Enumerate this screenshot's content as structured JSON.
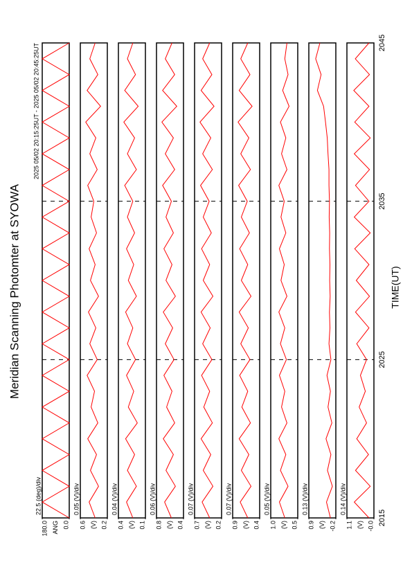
{
  "chart_data": {
    "type": "line",
    "title": "Meridian Scanning Photomter at SYOWA",
    "subtitle": "2025 05/02 20:15:25UT - 2025 05/02 20:45:25UT",
    "x_label": "TIME(UT)",
    "xlim": [
      2015,
      2045
    ],
    "xticks": [
      2015,
      2025,
      2035,
      2045
    ],
    "grid": true,
    "x": [
      2015,
      2016,
      2017,
      2018,
      2019,
      2020,
      2021,
      2022,
      2023,
      2024,
      2025,
      2026,
      2027,
      2028,
      2029,
      2030,
      2031,
      2032,
      2033,
      2034,
      2035,
      2036,
      2037,
      2038,
      2039,
      2040,
      2041,
      2042,
      2043,
      2044,
      2045
    ],
    "panels": [
      {
        "scale_label": "22.5 (deg)/div",
        "ylabel": "ANG",
        "ylim": [
          0,
          180
        ],
        "yticks": [
          {
            "value": 0,
            "label": "0.0"
          },
          {
            "value": 180,
            "label": "180.0"
          }
        ],
        "color": "#ff0000",
        "values": [
          0,
          180,
          0,
          180,
          0,
          180,
          0,
          180,
          0,
          180,
          0,
          180,
          0,
          180,
          0,
          180,
          0,
          180,
          0,
          180,
          0,
          180,
          0,
          180,
          0,
          180,
          0,
          180,
          0,
          180,
          0
        ]
      },
      {
        "scale_label": "0.05 (V)/div",
        "ylabel": "(V)",
        "ylim": [
          0.2,
          0.6
        ],
        "yticks": [
          0.2,
          0.6
        ],
        "color": "#ff0000",
        "values": [
          0.38,
          0.47,
          0.33,
          0.45,
          0.36,
          0.49,
          0.34,
          0.44,
          0.39,
          0.5,
          0.35,
          0.46,
          0.37,
          0.48,
          0.33,
          0.45,
          0.38,
          0.47,
          0.36,
          0.44,
          0.4,
          0.49,
          0.35,
          0.46,
          0.37,
          0.52,
          0.3,
          0.5,
          0.34,
          0.46,
          0.38
        ]
      },
      {
        "scale_label": "0.04 (V)/div",
        "ylabel": "(V)",
        "ylim": [
          0.1,
          0.4
        ],
        "yticks": [
          0.1,
          0.4
        ],
        "color": "#ff0000",
        "values": [
          0.24,
          0.31,
          0.2,
          0.3,
          0.22,
          0.32,
          0.19,
          0.29,
          0.23,
          0.31,
          0.21,
          0.3,
          0.24,
          0.32,
          0.2,
          0.29,
          0.23,
          0.31,
          0.22,
          0.3,
          0.24,
          0.33,
          0.2,
          0.3,
          0.22,
          0.34,
          0.18,
          0.33,
          0.21,
          0.3,
          0.24
        ]
      },
      {
        "scale_label": "0.06 (V)/div",
        "ylabel": "(V)",
        "ylim": [
          0.4,
          0.8
        ],
        "yticks": [
          0.4,
          0.8
        ],
        "color": "#ff0000",
        "values": [
          0.58,
          0.68,
          0.52,
          0.66,
          0.55,
          0.7,
          0.53,
          0.65,
          0.57,
          0.69,
          0.54,
          0.67,
          0.56,
          0.7,
          0.52,
          0.66,
          0.57,
          0.69,
          0.55,
          0.66,
          0.58,
          0.71,
          0.53,
          0.67,
          0.55,
          0.72,
          0.5,
          0.71,
          0.53,
          0.67,
          0.57
        ]
      },
      {
        "scale_label": "0.07 (V)/div",
        "ylabel": "(V)",
        "ylim": [
          0.2,
          0.7
        ],
        "yticks": [
          0.2,
          0.7
        ],
        "color": "#ff0000",
        "values": [
          0.42,
          0.56,
          0.36,
          0.54,
          0.4,
          0.58,
          0.37,
          0.53,
          0.42,
          0.57,
          0.38,
          0.55,
          0.41,
          0.58,
          0.36,
          0.54,
          0.42,
          0.57,
          0.39,
          0.54,
          0.43,
          0.59,
          0.37,
          0.55,
          0.4,
          0.6,
          0.34,
          0.58,
          0.38,
          0.55,
          0.42
        ]
      },
      {
        "scale_label": "0.07 (V)/div",
        "ylabel": "(V)",
        "ylim": [
          0.4,
          0.9
        ],
        "yticks": [
          0.4,
          0.9
        ],
        "color": "#ff0000",
        "values": [
          0.62,
          0.76,
          0.56,
          0.74,
          0.6,
          0.78,
          0.57,
          0.73,
          0.62,
          0.77,
          0.58,
          0.75,
          0.61,
          0.78,
          0.56,
          0.74,
          0.62,
          0.77,
          0.59,
          0.74,
          0.63,
          0.79,
          0.57,
          0.75,
          0.6,
          0.8,
          0.54,
          0.78,
          0.58,
          0.75,
          0.62
        ]
      },
      {
        "scale_label": "0.05 (V)/div",
        "ylabel": "(V)",
        "ylim": [
          0.5,
          1.0
        ],
        "yticks": [
          0.5,
          {
            "value": 1,
            "label": "1.0"
          }
        ],
        "color": "#ff0000",
        "values": [
          0.74,
          0.84,
          0.68,
          0.82,
          0.72,
          0.85,
          0.7,
          0.8,
          0.74,
          0.84,
          0.71,
          0.82,
          0.74,
          0.85,
          0.7,
          0.81,
          0.75,
          0.84,
          0.72,
          0.81,
          0.75,
          0.85,
          0.7,
          0.8,
          0.72,
          0.82,
          0.66,
          0.78,
          0.68,
          0.74,
          0.7
        ]
      },
      {
        "scale_label": "0.13 (V)/div",
        "ylabel": "(V)",
        "ylim": [
          -0.2,
          0.9
        ],
        "yticks": [
          -0.2,
          0.9
        ],
        "color": "#ff0000",
        "values": [
          0.02,
          0.18,
          -0.06,
          0.14,
          0.0,
          0.2,
          -0.04,
          0.12,
          0.02,
          0.16,
          0.0,
          0.08,
          0.04,
          0.06,
          0.03,
          0.05,
          0.04,
          0.06,
          0.05,
          0.07,
          0.06,
          0.08,
          0.08,
          0.12,
          0.15,
          0.22,
          0.3,
          0.55,
          0.4,
          0.62,
          0.45
        ]
      },
      {
        "scale_label": "0.14 (V)/div",
        "ylabel": "(V)",
        "ylim": [
          0,
          1.1
        ],
        "yticks": [
          {
            "value": 0,
            "label": "-0.0"
          },
          1.1
        ],
        "color": "#ff0000",
        "values": [
          0.2,
          0.8,
          0.15,
          0.75,
          0.22,
          0.7,
          0.3,
          0.6,
          0.35,
          0.55,
          0.3,
          0.7,
          0.2,
          0.75,
          0.18,
          0.72,
          0.2,
          0.78,
          0.15,
          0.8,
          0.2,
          0.75,
          0.18,
          0.8,
          0.15,
          0.78,
          0.2,
          0.82,
          0.18,
          0.76,
          0.2
        ]
      }
    ]
  }
}
